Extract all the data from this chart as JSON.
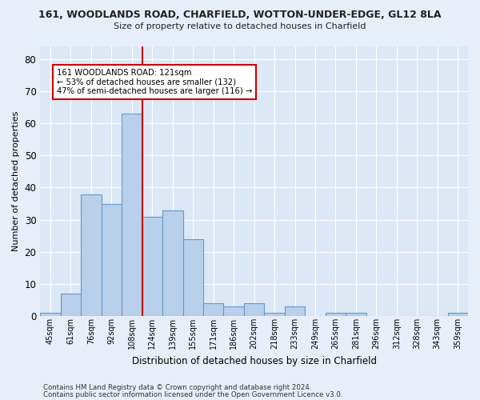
{
  "title": "161, WOODLANDS ROAD, CHARFIELD, WOTTON-UNDER-EDGE, GL12 8LA",
  "subtitle": "Size of property relative to detached houses in Charfield",
  "xlabel": "Distribution of detached houses by size in Charfield",
  "ylabel": "Number of detached properties",
  "categories": [
    "45sqm",
    "61sqm",
    "76sqm",
    "92sqm",
    "108sqm",
    "124sqm",
    "139sqm",
    "155sqm",
    "171sqm",
    "186sqm",
    "202sqm",
    "218sqm",
    "233sqm",
    "249sqm",
    "265sqm",
    "281sqm",
    "296sqm",
    "312sqm",
    "328sqm",
    "343sqm",
    "359sqm"
  ],
  "values": [
    1,
    7,
    38,
    35,
    63,
    31,
    33,
    24,
    4,
    3,
    4,
    1,
    3,
    0,
    1,
    1,
    0,
    0,
    0,
    0,
    1
  ],
  "bar_color": "#b8d0ea",
  "bar_edge_color": "#6699cc",
  "vline_x_index": 4.5,
  "vline_color": "#cc0000",
  "annotation_text": "161 WOODLANDS ROAD: 121sqm\n← 53% of detached houses are smaller (132)\n47% of semi-detached houses are larger (116) →",
  "annotation_box_color": "#ffffff",
  "annotation_box_edge": "#cc0000",
  "ylim": [
    0,
    84
  ],
  "yticks": [
    0,
    10,
    20,
    30,
    40,
    50,
    60,
    70,
    80
  ],
  "background_color": "#dce8f5",
  "grid_color": "#ffffff",
  "fig_background": "#e8eef8",
  "footer1": "Contains HM Land Registry data © Crown copyright and database right 2024.",
  "footer2": "Contains public sector information licensed under the Open Government Licence v3.0."
}
